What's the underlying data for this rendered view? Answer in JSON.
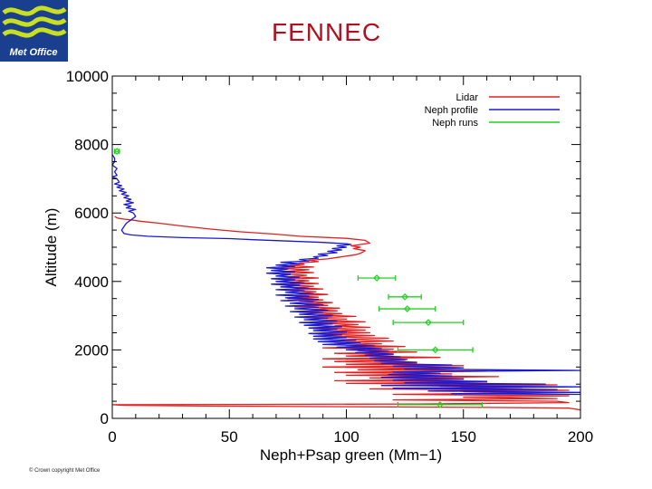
{
  "header": {
    "title": "FENNEC",
    "logo_text": "Met Office"
  },
  "footer": {
    "copyright": "© Crown copyright   Met Office"
  },
  "colors": {
    "title": "#b01020",
    "lidar": "#e02020",
    "neph_profile": "#1a1ad0",
    "neph_runs": "#20d020",
    "logo_blue": "#1a3f8f",
    "logo_green": "#c8e020"
  },
  "chart_data": {
    "type": "line",
    "title": "",
    "xlabel": "Neph+Psap green (Mm−1)",
    "ylabel": "Altitude (m)",
    "xlim": [
      0,
      200
    ],
    "ylim": [
      0,
      10000
    ],
    "x_ticks": [
      0,
      50,
      100,
      150,
      200
    ],
    "x_tick_labels": [
      "0",
      "50",
      "100",
      "150",
      "200"
    ],
    "y_ticks": [
      0,
      2000,
      4000,
      6000,
      8000,
      10000
    ],
    "y_tick_labels": [
      "0",
      "2000",
      "4000",
      "6000",
      "8000",
      "10000"
    ],
    "legend_position": "top-right",
    "series": [
      {
        "name": "Lidar",
        "kind": "line",
        "points": [
          [
            200,
            250
          ],
          [
            195,
            300
          ],
          [
            160,
            320
          ],
          [
            100,
            340
          ],
          [
            40,
            360
          ],
          [
            5,
            380
          ],
          [
            0,
            400
          ],
          [
            130,
            420
          ],
          [
            195,
            460
          ],
          [
            190,
            500
          ],
          [
            120,
            540
          ],
          [
            190,
            580
          ],
          [
            150,
            620
          ],
          [
            195,
            660
          ],
          [
            120,
            700
          ],
          [
            180,
            740
          ],
          [
            150,
            780
          ],
          [
            195,
            820
          ],
          [
            110,
            860
          ],
          [
            175,
            900
          ],
          [
            140,
            940
          ],
          [
            190,
            980
          ],
          [
            100,
            1020
          ],
          [
            160,
            1060
          ],
          [
            95,
            1100
          ],
          [
            150,
            1140
          ],
          [
            110,
            1180
          ],
          [
            165,
            1220
          ],
          [
            100,
            1260
          ],
          [
            145,
            1300
          ],
          [
            95,
            1340
          ],
          [
            160,
            1380
          ],
          [
            105,
            1420
          ],
          [
            140,
            1460
          ],
          [
            90,
            1500
          ],
          [
            150,
            1540
          ],
          [
            100,
            1580
          ],
          [
            130,
            1620
          ],
          [
            95,
            1660
          ],
          [
            125,
            1700
          ],
          [
            90,
            1740
          ],
          [
            140,
            1780
          ],
          [
            100,
            1820
          ],
          [
            120,
            1860
          ],
          [
            95,
            1900
          ],
          [
            130,
            1940
          ],
          [
            105,
            1980
          ],
          [
            120,
            2020
          ],
          [
            90,
            2060
          ],
          [
            125,
            2100
          ],
          [
            100,
            2140
          ],
          [
            115,
            2180
          ],
          [
            95,
            2220
          ],
          [
            120,
            2260
          ],
          [
            98,
            2300
          ],
          [
            118,
            2340
          ],
          [
            92,
            2380
          ],
          [
            112,
            2420
          ],
          [
            88,
            2460
          ],
          [
            110,
            2500
          ],
          [
            92,
            2540
          ],
          [
            108,
            2580
          ],
          [
            86,
            2620
          ],
          [
            110,
            2660
          ],
          [
            95,
            2700
          ],
          [
            105,
            2740
          ],
          [
            85,
            2780
          ],
          [
            108,
            2820
          ],
          [
            90,
            2860
          ],
          [
            100,
            2900
          ],
          [
            82,
            2940
          ],
          [
            104,
            2980
          ],
          [
            88,
            3020
          ],
          [
            98,
            3060
          ],
          [
            80,
            3100
          ],
          [
            96,
            3140
          ],
          [
            85,
            3180
          ],
          [
            97,
            3220
          ],
          [
            78,
            3260
          ],
          [
            92,
            3300
          ],
          [
            82,
            3340
          ],
          [
            94,
            3380
          ],
          [
            80,
            3420
          ],
          [
            90,
            3460
          ],
          [
            75,
            3500
          ],
          [
            88,
            3540
          ],
          [
            78,
            3580
          ],
          [
            92,
            3620
          ],
          [
            80,
            3660
          ],
          [
            87,
            3700
          ],
          [
            74,
            3740
          ],
          [
            90,
            3780
          ],
          [
            78,
            3820
          ],
          [
            86,
            3860
          ],
          [
            72,
            3900
          ],
          [
            88,
            3940
          ],
          [
            76,
            3980
          ],
          [
            84,
            4020
          ],
          [
            73,
            4060
          ],
          [
            88,
            4100
          ],
          [
            76,
            4140
          ],
          [
            83,
            4180
          ],
          [
            72,
            4220
          ],
          [
            86,
            4260
          ],
          [
            75,
            4300
          ],
          [
            84,
            4340
          ],
          [
            71,
            4380
          ],
          [
            86,
            4420
          ],
          [
            76,
            4460
          ],
          [
            82,
            4500
          ],
          [
            80,
            4540
          ],
          [
            88,
            4580
          ],
          [
            84,
            4620
          ],
          [
            92,
            4660
          ],
          [
            96,
            4700
          ],
          [
            100,
            4740
          ],
          [
            104,
            4780
          ],
          [
            106,
            4820
          ],
          [
            108,
            4900
          ],
          [
            103,
            4960
          ],
          [
            106,
            5000
          ],
          [
            102,
            5040
          ],
          [
            110,
            5120
          ],
          [
            108,
            5200
          ],
          [
            100,
            5260
          ],
          [
            80,
            5320
          ],
          [
            70,
            5380
          ],
          [
            55,
            5450
          ],
          [
            42,
            5530
          ],
          [
            30,
            5620
          ],
          [
            20,
            5700
          ],
          [
            12,
            5760
          ],
          [
            8,
            5800
          ],
          [
            5,
            5820
          ],
          [
            3,
            5840
          ],
          [
            2,
            5860
          ],
          [
            1,
            5900
          ]
        ]
      },
      {
        "name": "Neph profile",
        "kind": "line",
        "points": [
          [
            200,
            700
          ],
          [
            145,
            720
          ],
          [
            200,
            760
          ],
          [
            135,
            800
          ],
          [
            190,
            840
          ],
          [
            120,
            880
          ],
          [
            200,
            920
          ],
          [
            115,
            960
          ],
          [
            185,
            1000
          ],
          [
            125,
            1040
          ],
          [
            160,
            1080
          ],
          [
            120,
            1120
          ],
          [
            150,
            1160
          ],
          [
            115,
            1200
          ],
          [
            145,
            1240
          ],
          [
            118,
            1280
          ],
          [
            140,
            1320
          ],
          [
            120,
            1360
          ],
          [
            200,
            1400
          ],
          [
            125,
            1440
          ],
          [
            150,
            1480
          ],
          [
            120,
            1520
          ],
          [
            145,
            1560
          ],
          [
            115,
            1600
          ],
          [
            130,
            1640
          ],
          [
            112,
            1680
          ],
          [
            126,
            1720
          ],
          [
            110,
            1760
          ],
          [
            123,
            1800
          ],
          [
            108,
            1840
          ],
          [
            120,
            1880
          ],
          [
            104,
            1920
          ],
          [
            118,
            1960
          ],
          [
            100,
            2000
          ],
          [
            115,
            2040
          ],
          [
            96,
            2080
          ],
          [
            112,
            2120
          ],
          [
            90,
            2160
          ],
          [
            106,
            2200
          ],
          [
            88,
            2240
          ],
          [
            104,
            2280
          ],
          [
            86,
            2320
          ],
          [
            100,
            2360
          ],
          [
            86,
            2400
          ],
          [
            98,
            2440
          ],
          [
            84,
            2480
          ],
          [
            100,
            2520
          ],
          [
            86,
            2560
          ],
          [
            96,
            2600
          ],
          [
            84,
            2640
          ],
          [
            98,
            2680
          ],
          [
            82,
            2720
          ],
          [
            94,
            2760
          ],
          [
            80,
            2800
          ],
          [
            96,
            2840
          ],
          [
            82,
            2880
          ],
          [
            92,
            2920
          ],
          [
            78,
            2960
          ],
          [
            94,
            3000
          ],
          [
            80,
            3040
          ],
          [
            90,
            3080
          ],
          [
            76,
            3120
          ],
          [
            92,
            3160
          ],
          [
            78,
            3200
          ],
          [
            88,
            3240
          ],
          [
            74,
            3280
          ],
          [
            90,
            3320
          ],
          [
            76,
            3360
          ],
          [
            86,
            3400
          ],
          [
            72,
            3440
          ],
          [
            88,
            3480
          ],
          [
            74,
            3520
          ],
          [
            84,
            3560
          ],
          [
            70,
            3600
          ],
          [
            86,
            3640
          ],
          [
            74,
            3680
          ],
          [
            82,
            3720
          ],
          [
            70,
            3760
          ],
          [
            84,
            3800
          ],
          [
            72,
            3840
          ],
          [
            80,
            3880
          ],
          [
            68,
            3920
          ],
          [
            82,
            3960
          ],
          [
            70,
            4000
          ],
          [
            78,
            4040
          ],
          [
            68,
            4080
          ],
          [
            80,
            4120
          ],
          [
            70,
            4160
          ],
          [
            76,
            4200
          ],
          [
            66,
            4240
          ],
          [
            78,
            4280
          ],
          [
            68,
            4320
          ],
          [
            75,
            4360
          ],
          [
            66,
            4400
          ],
          [
            78,
            4440
          ],
          [
            70,
            4480
          ],
          [
            80,
            4520
          ],
          [
            72,
            4560
          ],
          [
            84,
            4600
          ],
          [
            80,
            4640
          ],
          [
            88,
            4680
          ],
          [
            86,
            4720
          ],
          [
            92,
            4760
          ],
          [
            88,
            4800
          ],
          [
            96,
            4840
          ],
          [
            92,
            4880
          ],
          [
            98,
            4920
          ],
          [
            94,
            4960
          ],
          [
            100,
            5000
          ],
          [
            96,
            5040
          ],
          [
            102,
            5080
          ],
          [
            100,
            5100
          ],
          [
            90,
            5140
          ],
          [
            75,
            5180
          ],
          [
            60,
            5220
          ],
          [
            50,
            5250
          ],
          [
            30,
            5280
          ],
          [
            15,
            5320
          ],
          [
            8,
            5360
          ],
          [
            5,
            5400
          ],
          [
            4,
            5500
          ],
          [
            5,
            5600
          ],
          [
            6,
            5700
          ],
          [
            8,
            5800
          ],
          [
            10,
            5900
          ],
          [
            9,
            6000
          ],
          [
            7,
            6050
          ],
          [
            10,
            6100
          ],
          [
            6,
            6150
          ],
          [
            8,
            6200
          ],
          [
            5,
            6250
          ],
          [
            9,
            6300
          ],
          [
            6,
            6350
          ],
          [
            8,
            6400
          ],
          [
            5,
            6450
          ],
          [
            7,
            6500
          ],
          [
            4,
            6550
          ],
          [
            6,
            6600
          ],
          [
            3,
            6650
          ],
          [
            5,
            6700
          ],
          [
            2,
            6750
          ],
          [
            4,
            6800
          ],
          [
            1,
            6850
          ],
          [
            3,
            6900
          ],
          [
            2,
            7000
          ],
          [
            0,
            7050
          ],
          [
            2,
            7100
          ],
          [
            1,
            7200
          ],
          [
            2,
            7300
          ],
          [
            0,
            7400
          ],
          [
            1,
            7500
          ],
          [
            1,
            7600
          ],
          [
            0,
            7700
          ]
        ]
      },
      {
        "name": "Neph runs",
        "kind": "errorbar",
        "points": [
          {
            "x": 140,
            "y": 400,
            "xerr": 18
          },
          {
            "x": 138,
            "y": 2000,
            "xerr": 16
          },
          {
            "x": 135,
            "y": 2800,
            "xerr": 15
          },
          {
            "x": 126,
            "y": 3200,
            "xerr": 12
          },
          {
            "x": 125,
            "y": 3550,
            "xerr": 7
          },
          {
            "x": 113,
            "y": 4100,
            "xerr": 8
          },
          {
            "x": 2,
            "y": 7800,
            "xerr": 1
          }
        ]
      }
    ]
  }
}
